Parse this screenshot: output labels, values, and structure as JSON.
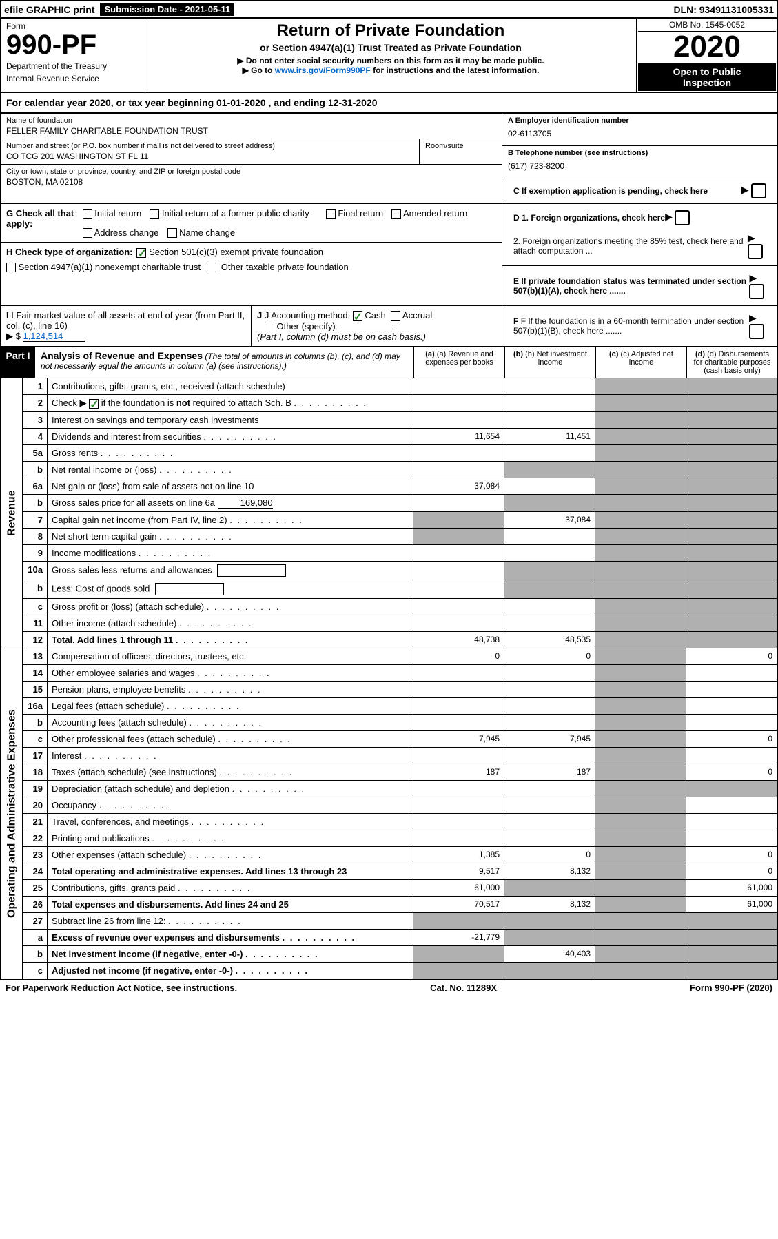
{
  "top_bar": {
    "efile": "efile GRAPHIC print",
    "submission_label": "Submission Date - ",
    "submission_date": "2021-05-11",
    "dln_label": "DLN: ",
    "dln": "93491131005331"
  },
  "header": {
    "form_label": "Form",
    "form_number": "990-PF",
    "dept1": "Department of the Treasury",
    "dept2": "Internal Revenue Service",
    "title": "Return of Private Foundation",
    "subtitle": "or Section 4947(a)(1) Trust Treated as Private Foundation",
    "note1": "▶ Do not enter social security numbers on this form as it may be made public.",
    "note2_pre": "▶ Go to ",
    "note2_link": "www.irs.gov/Form990PF",
    "note2_post": " for instructions and the latest information.",
    "omb": "OMB No. 1545-0052",
    "tax_year": "2020",
    "open1": "Open to Public",
    "open2": "Inspection"
  },
  "cal_year": {
    "text_pre": "For calendar year 2020, or tax year beginning ",
    "begin": "01-01-2020",
    "text_mid": " , and ending ",
    "end": "12-31-2020"
  },
  "entity": {
    "name_label": "Name of foundation",
    "name": "FELLER FAMILY CHARITABLE FOUNDATION TRUST",
    "addr_label": "Number and street (or P.O. box number if mail is not delivered to street address)",
    "addr": "CO TCG 201 WASHINGTON ST FL 11",
    "room_label": "Room/suite",
    "city_label": "City or town, state or province, country, and ZIP or foreign postal code",
    "city": "BOSTON, MA  02108",
    "ein_label": "A Employer identification number",
    "ein": "02-6113705",
    "phone_label": "B Telephone number (see instructions)",
    "phone": "(617) 723-8200",
    "c_label": "C If exemption application is pending, check here"
  },
  "checks": {
    "g_label": "G Check all that apply:",
    "g_opts": [
      "Initial return",
      "Initial return of a former public charity",
      "Final return",
      "Amended return",
      "Address change",
      "Name change"
    ],
    "h_label": "H Check type of organization:",
    "h_opt1": "Section 501(c)(3) exempt private foundation",
    "h_opt2": "Section 4947(a)(1) nonexempt charitable trust",
    "h_opt3": "Other taxable private foundation",
    "i_label": "I Fair market value of all assets at end of year (from Part II, col. (c), line 16)",
    "i_prefix": "▶ $",
    "i_value": "1,124,514",
    "j_label": "J Accounting method:",
    "j_cash": "Cash",
    "j_accrual": "Accrual",
    "j_other": "Other (specify)",
    "j_note": "(Part I, column (d) must be on cash basis.)",
    "d1": "D 1. Foreign organizations, check here",
    "d2": "2. Foreign organizations meeting the 85% test, check here and attach computation ...",
    "e": "E If private foundation status was terminated under section 507(b)(1)(A), check here .......",
    "f": "F If the foundation is in a 60-month termination under section 507(b)(1)(B), check here ......."
  },
  "part1": {
    "label": "Part I",
    "title": "Analysis of Revenue and Expenses",
    "title_note": "(The total of amounts in columns (b), (c), and (d) may not necessarily equal the amounts in column (a) (see instructions).)",
    "col_a": "(a) Revenue and expenses per books",
    "col_b": "(b) Net investment income",
    "col_c": "(c) Adjusted net income",
    "col_d": "(d) Disbursements for charitable purposes (cash basis only)",
    "side_revenue": "Revenue",
    "side_expenses": "Operating and Administrative Expenses",
    "rows": [
      {
        "n": "1",
        "d": "Contributions, gifts, grants, etc., received (attach schedule)"
      },
      {
        "n": "2",
        "d": "Check ▶ [✓] if the foundation is not required to attach Sch. B"
      },
      {
        "n": "3",
        "d": "Interest on savings and temporary cash investments"
      },
      {
        "n": "4",
        "d": "Dividends and interest from securities",
        "a": "11,654",
        "b": "11,451"
      },
      {
        "n": "5a",
        "d": "Gross rents"
      },
      {
        "n": "b",
        "d": "Net rental income or (loss)"
      },
      {
        "n": "6a",
        "d": "Net gain or (loss) from sale of assets not on line 10",
        "a": "37,084"
      },
      {
        "n": "b",
        "d": "Gross sales price for all assets on line 6a",
        "inline": "169,080"
      },
      {
        "n": "7",
        "d": "Capital gain net income (from Part IV, line 2)",
        "b": "37,084"
      },
      {
        "n": "8",
        "d": "Net short-term capital gain"
      },
      {
        "n": "9",
        "d": "Income modifications"
      },
      {
        "n": "10a",
        "d": "Gross sales less returns and allowances"
      },
      {
        "n": "b",
        "d": "Less: Cost of goods sold"
      },
      {
        "n": "c",
        "d": "Gross profit or (loss) (attach schedule)"
      },
      {
        "n": "11",
        "d": "Other income (attach schedule)"
      },
      {
        "n": "12",
        "d": "Total. Add lines 1 through 11",
        "bold": true,
        "a": "48,738",
        "b": "48,535"
      },
      {
        "n": "13",
        "d": "Compensation of officers, directors, trustees, etc.",
        "a": "0",
        "b": "0",
        "dcol": "0"
      },
      {
        "n": "14",
        "d": "Other employee salaries and wages"
      },
      {
        "n": "15",
        "d": "Pension plans, employee benefits"
      },
      {
        "n": "16a",
        "d": "Legal fees (attach schedule)"
      },
      {
        "n": "b",
        "d": "Accounting fees (attach schedule)"
      },
      {
        "n": "c",
        "d": "Other professional fees (attach schedule)",
        "a": "7,945",
        "b": "7,945",
        "dcol": "0"
      },
      {
        "n": "17",
        "d": "Interest"
      },
      {
        "n": "18",
        "d": "Taxes (attach schedule) (see instructions)",
        "a": "187",
        "b": "187",
        "dcol": "0"
      },
      {
        "n": "19",
        "d": "Depreciation (attach schedule) and depletion"
      },
      {
        "n": "20",
        "d": "Occupancy"
      },
      {
        "n": "21",
        "d": "Travel, conferences, and meetings"
      },
      {
        "n": "22",
        "d": "Printing and publications"
      },
      {
        "n": "23",
        "d": "Other expenses (attach schedule)",
        "a": "1,385",
        "b": "0",
        "dcol": "0"
      },
      {
        "n": "24",
        "d": "Total operating and administrative expenses. Add lines 13 through 23",
        "bold": true,
        "a": "9,517",
        "b": "8,132",
        "dcol": "0"
      },
      {
        "n": "25",
        "d": "Contributions, gifts, grants paid",
        "a": "61,000",
        "dcol": "61,000"
      },
      {
        "n": "26",
        "d": "Total expenses and disbursements. Add lines 24 and 25",
        "bold": true,
        "a": "70,517",
        "b": "8,132",
        "dcol": "61,000"
      },
      {
        "n": "27",
        "d": "Subtract line 26 from line 12:"
      },
      {
        "n": "a",
        "d": "Excess of revenue over expenses and disbursements",
        "bold": true,
        "a": "-21,779"
      },
      {
        "n": "b",
        "d": "Net investment income (if negative, enter -0-)",
        "bold": true,
        "b": "40,403"
      },
      {
        "n": "c",
        "d": "Adjusted net income (if negative, enter -0-)",
        "bold": true
      }
    ]
  },
  "footer": {
    "left": "For Paperwork Reduction Act Notice, see instructions.",
    "mid": "Cat. No. 11289X",
    "right": "Form 990-PF (2020)"
  },
  "colors": {
    "header_black": "#000000",
    "link": "#0066cc",
    "check_green": "#2a8a2a",
    "shaded": "#b0b0b0"
  }
}
